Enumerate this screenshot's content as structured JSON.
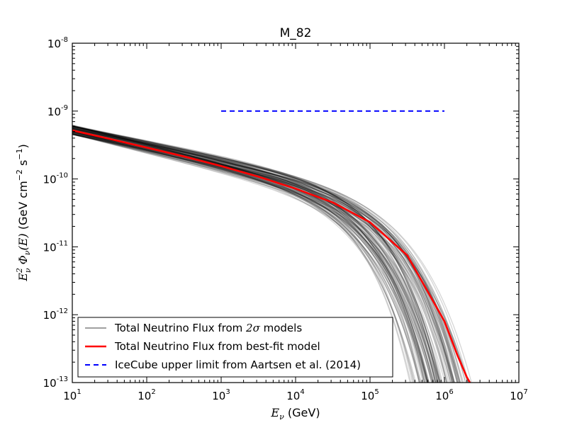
{
  "chart_data": {
    "type": "line",
    "title": "M_82",
    "xlabel": {
      "symbol": "E",
      "sub": "ν",
      "unit": "(GeV)"
    },
    "ylabel": {
      "prefix": "E",
      "prefix_sup": "2",
      "prefix_sub": "ν",
      "phi": "Φ",
      "phi_sub": "ν",
      "arg": "(E)",
      "unit_a": "(GeV cm",
      "unit_exp1": "−2",
      "unit_b": " s",
      "unit_exp2": "−1",
      "unit_c": ")"
    },
    "x_scale": "log",
    "y_scale": "log",
    "xlim": [
      10,
      10000000
    ],
    "ylim": [
      1e-13,
      1e-08
    ],
    "x_ticks": [
      {
        "base": "10",
        "exp": "1",
        "value": 10
      },
      {
        "base": "10",
        "exp": "2",
        "value": 100
      },
      {
        "base": "10",
        "exp": "3",
        "value": 1000
      },
      {
        "base": "10",
        "exp": "4",
        "value": 10000
      },
      {
        "base": "10",
        "exp": "5",
        "value": 100000
      },
      {
        "base": "10",
        "exp": "6",
        "value": 1000000
      },
      {
        "base": "10",
        "exp": "7",
        "value": 10000000
      }
    ],
    "y_ticks": [
      {
        "base": "10",
        "exp": "-8",
        "value": 1e-08
      },
      {
        "base": "10",
        "exp": "-9",
        "value": 1e-09
      },
      {
        "base": "10",
        "exp": "-10",
        "value": 1e-10
      },
      {
        "base": "10",
        "exp": "-11",
        "value": 1e-11
      },
      {
        "base": "10",
        "exp": "-12",
        "value": 1e-12
      },
      {
        "base": "10",
        "exp": "-13",
        "value": 1e-13
      }
    ],
    "series": [
      {
        "name": "Total Neutrino Flux from 2σ models",
        "legend_prefix": "Total Neutrino Flux from ",
        "legend_math": "2σ",
        "legend_suffix": " models",
        "color": "#808080",
        "style": "ensemble",
        "n_curves": 120,
        "description": "band of model curves around best fit; spread widening toward high energy",
        "cutoff_range_GeV": [
          500000,
          4000000
        ]
      },
      {
        "name": "Total Neutrino Flux from best-fit model",
        "legend_prefix": "Total Neutrino Flux from best-fit model",
        "legend_math": "",
        "legend_suffix": "",
        "color": "#ff0000",
        "style": "solid",
        "x": [
          10,
          31.6,
          100,
          316,
          1000,
          3160,
          10000,
          31600,
          100000,
          316000,
          1000000,
          1500000,
          2000000,
          2200000
        ],
        "y": [
          5.2e-10,
          3.9e-10,
          2.9e-10,
          2.15e-10,
          1.55e-10,
          1.08e-10,
          7.2e-11,
          4.5e-11,
          2.3e-11,
          7.5e-12,
          8e-13,
          2.5e-13,
          1.2e-13,
          1e-13
        ]
      },
      {
        "name": "IceCube upper limit from Aartsen et al. (2014)",
        "legend_prefix": "IceCube upper limit from Aartsen et al. (2014)",
        "legend_math": "",
        "legend_suffix": "",
        "color": "#0000ff",
        "style": "dashed",
        "x": [
          1000,
          1000000
        ],
        "y": [
          1e-09,
          1e-09
        ]
      }
    ],
    "legend_position": "lower-left"
  }
}
